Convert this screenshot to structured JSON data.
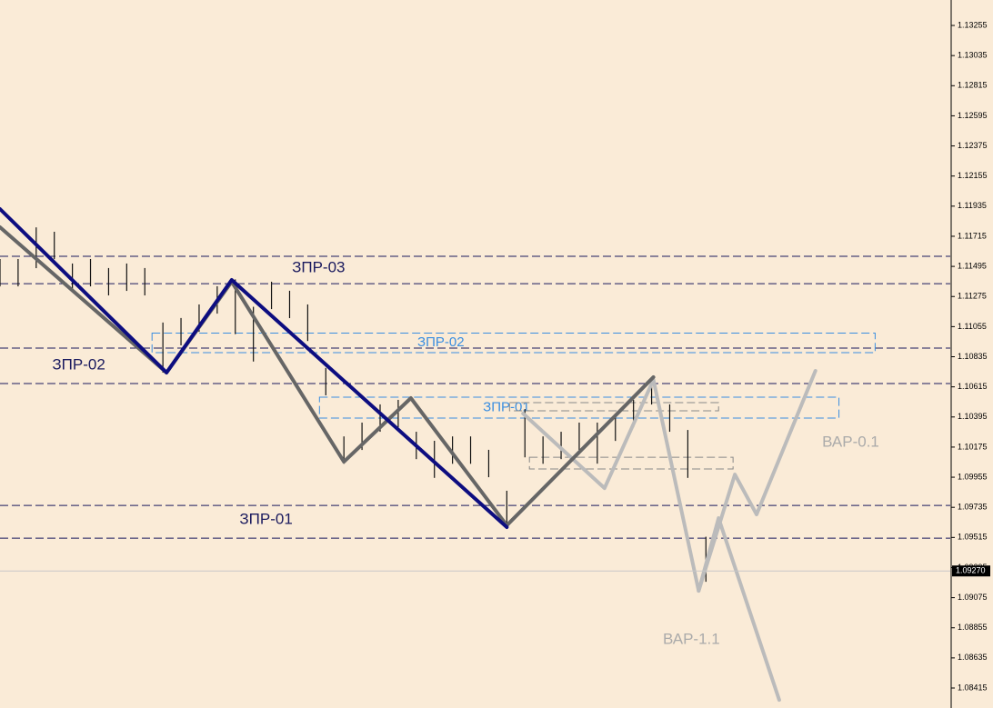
{
  "chart_data": {
    "type": "ohlc",
    "background": "#faebd7",
    "ylim": [
      1.08269,
      1.13441
    ],
    "xlim": [
      0,
      105
    ],
    "yticks": [
      1.13255,
      1.13035,
      1.12815,
      1.12595,
      1.12375,
      1.12155,
      1.11935,
      1.11715,
      1.11495,
      1.11275,
      1.11055,
      1.10835,
      1.10615,
      1.10395,
      1.10175,
      1.09955,
      1.09735,
      1.09515,
      1.09295,
      1.09075,
      1.08855,
      1.08635,
      1.08415
    ],
    "bar_color": "#111111",
    "x": [
      0,
      2,
      4,
      6,
      8,
      10,
      12,
      14,
      16,
      18,
      20,
      22,
      24,
      26,
      28,
      30,
      32,
      34,
      36,
      38,
      40,
      42,
      44,
      46,
      48,
      50,
      52,
      54,
      56,
      58,
      60,
      62,
      64,
      66,
      68,
      70,
      72,
      74,
      76,
      78
    ],
    "high": [
      1.11549,
      1.11549,
      1.1178,
      1.11748,
      1.11516,
      1.11549,
      1.11483,
      1.11516,
      1.11483,
      1.11085,
      1.11118,
      1.11217,
      1.1135,
      1.114,
      1.112,
      1.11383,
      1.11317,
      1.11217,
      1.10753,
      1.10253,
      1.10354,
      1.10487,
      1.1052,
      1.10287,
      1.10221,
      1.10253,
      1.10253,
      1.10155,
      1.09856,
      1.10453,
      1.10253,
      1.10287,
      1.10354,
      1.10354,
      1.1042,
      1.1052,
      1.10686,
      1.10487,
      1.103,
      1.0952
    ],
    "low": [
      1.11349,
      1.11349,
      1.11482,
      1.11548,
      1.11316,
      1.11349,
      1.11283,
      1.11316,
      1.11283,
      1.10719,
      1.10918,
      1.11017,
      1.1115,
      1.11,
      1.108,
      1.11183,
      1.11117,
      1.1095,
      1.10553,
      1.10053,
      1.10154,
      1.10287,
      1.1032,
      1.10087,
      1.0995,
      1.10053,
      1.10053,
      1.09955,
      1.096,
      1.101,
      1.10053,
      1.10087,
      1.10154,
      1.10054,
      1.1022,
      1.1032,
      1.10486,
      1.10287,
      1.0995,
      1.09191
    ],
    "current_price": {
      "value": 1.0927,
      "label": "1.09270"
    },
    "levels": [
      {
        "value": 1.11569,
        "color": "#1a1a5e"
      },
      {
        "value": 1.11369,
        "color": "#1a1a5e"
      },
      {
        "value": 1.10898,
        "color": "#1a1a5e"
      },
      {
        "value": 1.10639,
        "color": "#1a1a5e"
      },
      {
        "value": 1.09749,
        "color": "#1a1a5e"
      },
      {
        "value": 1.0951,
        "color": "#1a1a5e"
      }
    ],
    "lines": [
      {
        "color": "#bbbbbb",
        "width": 4,
        "x": [
          57.8,
          66.8,
          72.2,
          77.2,
          81.2,
          83.6,
          90.1
        ],
        "values": [
          1.1042,
          1.09875,
          1.10666,
          1.09125,
          1.09975,
          1.09683,
          1.10732
        ]
      },
      {
        "color": "#bbbbbb",
        "width": 4,
        "x": [
          77.2,
          79.4,
          86.1
        ],
        "values": [
          1.09125,
          1.09656,
          1.08328
        ]
      },
      {
        "color": "#666666",
        "width": 4,
        "x": [
          0,
          18.4,
          25.6,
          38,
          45.4,
          56,
          72.2
        ],
        "values": [
          1.11781,
          1.10719,
          1.11383,
          1.10068,
          1.10533,
          1.09603,
          1.10686
        ]
      },
      {
        "color": "#0d0d80",
        "width": 4,
        "x": [
          0,
          18.4,
          25.6,
          56
        ],
        "values": [
          1.11914,
          1.10719,
          1.11396,
          1.0959
        ]
      }
    ],
    "zones": [
      {
        "label": "ЗПР-02",
        "x": [
          16.8,
          96.7
        ],
        "values": [
          1.11008,
          1.10865
        ],
        "color": "#3a8ee0"
      },
      {
        "label": "ЗПР-01",
        "x": [
          35.3,
          92.7
        ],
        "values": [
          1.1054,
          1.10387
        ],
        "color": "#3a8ee0"
      },
      {
        "x": [
          56.3,
          79.4
        ],
        "values": [
          1.105,
          1.1044
        ],
        "color": "#888888"
      },
      {
        "x": [
          58.5,
          81
        ],
        "values": [
          1.10101,
          1.10015
        ],
        "color": "#888888"
      }
    ],
    "annotations": [
      {
        "text": "ЗПР-03",
        "x": 35.2,
        "y": 1.11482,
        "color": "#1a1a5e"
      },
      {
        "text": "ЗПР-02",
        "x": 8.7,
        "y": 1.10772,
        "color": "#1a1a5e"
      },
      {
        "text": "ЗПР-01",
        "x": 29.4,
        "y": 1.09643,
        "color": "#1a1a5e"
      },
      {
        "text": "ВАР-0.1",
        "x": 94,
        "y": 1.10207,
        "color": "#aaaaaa"
      },
      {
        "text": "ВАР-1.1",
        "x": 76.4,
        "y": 1.08767,
        "color": "#aaaaaa"
      }
    ]
  }
}
